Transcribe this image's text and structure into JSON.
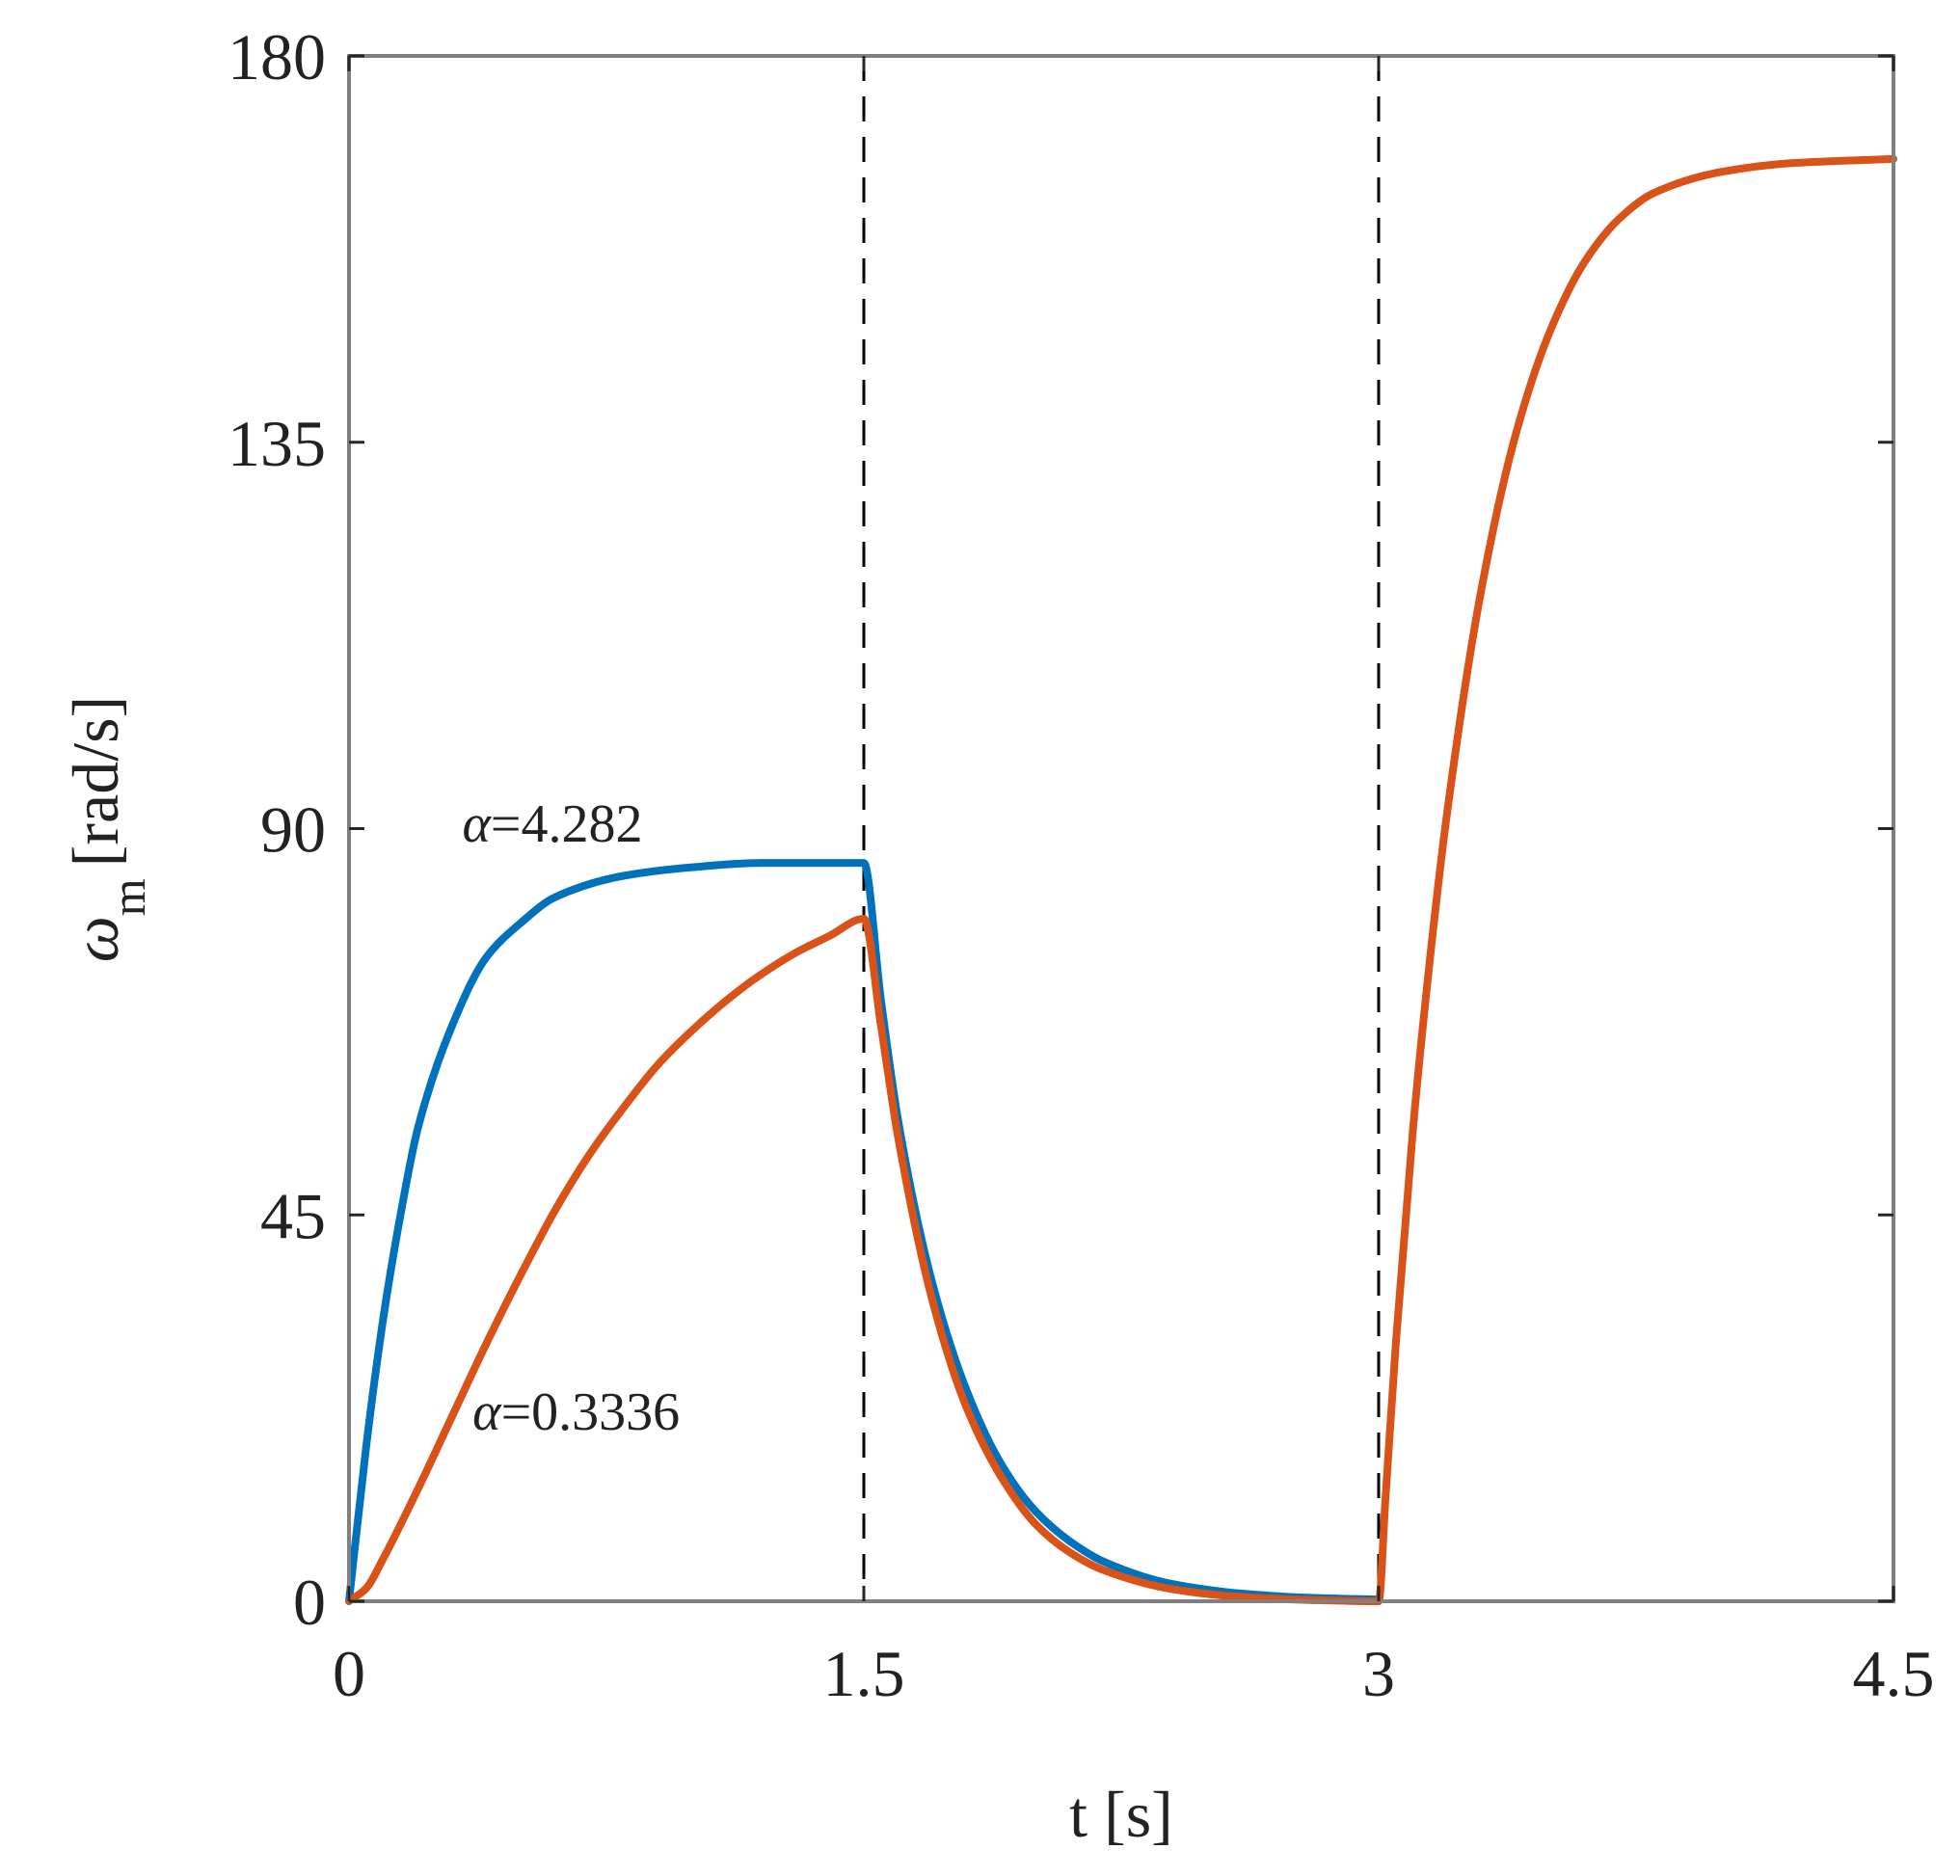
{
  "chart_data": {
    "type": "line",
    "title": "",
    "xlabel": "t [s]",
    "ylabel": {
      "symbol": "ω",
      "subscript": "m",
      "unit": "[rad/s]"
    },
    "xlim": [
      0,
      4.5
    ],
    "ylim": [
      0,
      180
    ],
    "xticks": [
      0,
      1.5,
      3,
      4.5
    ],
    "xtick_labels": [
      "0",
      "1.5",
      "3",
      "4.5"
    ],
    "yticks": [
      0,
      45,
      90,
      135,
      180
    ],
    "ytick_labels": [
      "0",
      "45",
      "90",
      "135",
      "180"
    ],
    "grid": false,
    "legend": "none",
    "vlines": [
      1.5,
      3.0
    ],
    "vline_style": "dashed",
    "series": [
      {
        "color": "#0072BD",
        "x": [
          0,
          0.05,
          0.1,
          0.15,
          0.2,
          0.3,
          0.4,
          0.5,
          0.6,
          0.8,
          1.0,
          1.2,
          1.5,
          1.55,
          1.6,
          1.7,
          1.8,
          1.9,
          2.0,
          2.1,
          2.2,
          2.4,
          2.6,
          2.8,
          3.0
        ],
        "y": [
          0,
          18,
          33,
          45,
          55,
          67,
          75,
          79,
          82,
          84.5,
          85.5,
          86,
          86,
          70,
          56,
          37,
          24.5,
          16,
          10.5,
          7,
          4.6,
          2.0,
          0.9,
          0.4,
          0.2
        ]
      },
      {
        "color": "#D95319",
        "x": [
          0,
          0.05,
          0.1,
          0.2,
          0.3,
          0.4,
          0.5,
          0.6,
          0.7,
          0.8,
          0.9,
          1.0,
          1.1,
          1.2,
          1.3,
          1.4,
          1.5,
          1.55,
          1.6,
          1.7,
          1.8,
          1.9,
          2.0,
          2.1,
          2.2,
          2.4,
          2.6,
          2.8,
          3.0,
          3.02,
          3.05,
          3.1,
          3.15,
          3.2,
          3.3,
          3.4,
          3.5,
          3.6,
          3.7,
          3.8,
          4.0,
          4.2,
          4.5
        ],
        "y": [
          0,
          1.5,
          5,
          13,
          21.5,
          30,
          38,
          45.5,
          52,
          57.5,
          62.5,
          66.5,
          70,
          73,
          75.5,
          77.5,
          79.5,
          67,
          54,
          35,
          22.5,
          14.5,
          9,
          5.7,
          3.6,
          1.4,
          0.5,
          0.15,
          0,
          12,
          30,
          55,
          75,
          92,
          118,
          136,
          148,
          156,
          161,
          164,
          166.5,
          167.5,
          168
        ]
      }
    ],
    "annotations": [
      {
        "symbol": "α",
        "text": "=4.282",
        "x": 0.33,
        "y": 88.5
      },
      {
        "symbol": "α",
        "text": "=0.3336",
        "x": 0.36,
        "y": 20
      }
    ]
  }
}
